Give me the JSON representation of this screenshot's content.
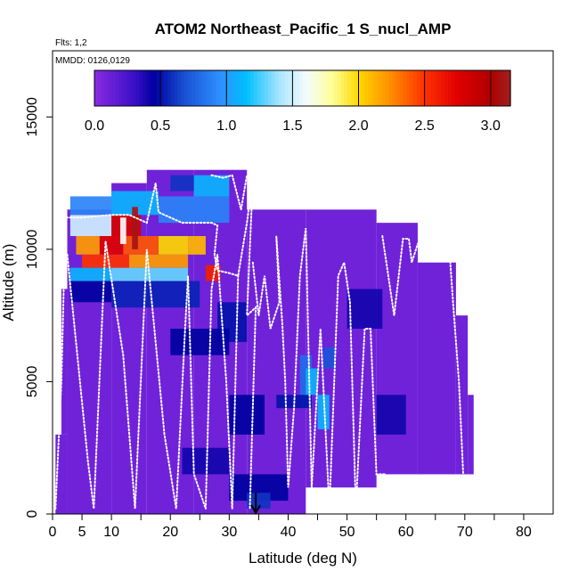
{
  "chart_data": {
    "type": "heatmap",
    "title": "ATOM2 Northeast_Pacific_1 S_nucl_AMP",
    "flights_note": "Flts: 1,2",
    "dates_note": "MMDD: 0126,0129",
    "xlabel": "Latitude (deg N)",
    "ylabel": "Altitude (m)",
    "xlim": [
      0,
      85
    ],
    "ylim": [
      0,
      17500
    ],
    "x_ticks": [
      0,
      5,
      10,
      20,
      30,
      40,
      50,
      60,
      70,
      80
    ],
    "x_minor_ticks": [
      15,
      25,
      35,
      45,
      55,
      65,
      75
    ],
    "y_ticks": [
      0,
      5000,
      10000,
      15000
    ],
    "colorbar": {
      "range": [
        0,
        3.15
      ],
      "ticks": [
        "0.0",
        "0.5",
        "1.0",
        "1.5",
        "2.0",
        "2.5",
        "3.0"
      ],
      "tick_values": [
        0,
        0.5,
        1.0,
        1.5,
        2.0,
        2.5,
        3.0
      ],
      "stops": [
        {
          "v": 0.0,
          "c": "#8a2be2"
        },
        {
          "v": 0.3,
          "c": "#3c10c8"
        },
        {
          "v": 0.45,
          "c": "#0000a0"
        },
        {
          "v": 0.7,
          "c": "#1a55d8"
        },
        {
          "v": 0.95,
          "c": "#2e8fff"
        },
        {
          "v": 1.15,
          "c": "#00bfff"
        },
        {
          "v": 1.4,
          "c": "#a8e4ff"
        },
        {
          "v": 1.6,
          "c": "#f4fbff"
        },
        {
          "v": 1.8,
          "c": "#ffff99"
        },
        {
          "v": 2.0,
          "c": "#ffd700"
        },
        {
          "v": 2.25,
          "c": "#ff8c00"
        },
        {
          "v": 2.5,
          "c": "#ff3000"
        },
        {
          "v": 2.75,
          "c": "#e00000"
        },
        {
          "v": 3.0,
          "c": "#b00000"
        },
        {
          "v": 3.15,
          "c": "#a02020"
        }
      ]
    },
    "footprint_segments": [
      {
        "lat": [
          0.5,
          2.5
        ],
        "alt": [
          0,
          3000
        ]
      },
      {
        "lat": [
          1.5,
          2.5
        ],
        "alt": [
          3000,
          8500
        ]
      },
      {
        "lat": [
          2.5,
          10
        ],
        "alt": [
          0,
          9000
        ]
      },
      {
        "lat": [
          2.5,
          10
        ],
        "alt": [
          9000,
          11500
        ]
      },
      {
        "lat": [
          10,
          16
        ],
        "alt": [
          0,
          12500
        ]
      },
      {
        "lat": [
          16,
          24
        ],
        "alt": [
          0,
          13000
        ]
      },
      {
        "lat": [
          24,
          33
        ],
        "alt": [
          0,
          13000
        ]
      },
      {
        "lat": [
          33,
          43
        ],
        "alt": [
          0,
          11500
        ]
      },
      {
        "lat": [
          43,
          55
        ],
        "alt": [
          1000,
          11500
        ]
      },
      {
        "lat": [
          55,
          62
        ],
        "alt": [
          1500,
          11000
        ]
      },
      {
        "lat": [
          62,
          68.5
        ],
        "alt": [
          1500,
          9500
        ]
      },
      {
        "lat": [
          68.5,
          70.5
        ],
        "alt": [
          1500,
          7500
        ]
      },
      {
        "lat": [
          70.5,
          71.5
        ],
        "alt": [
          1500,
          4500
        ]
      }
    ],
    "highlight_cells": [
      {
        "lat": [
          3,
          10
        ],
        "alt": [
          10500,
          11300
        ],
        "v": 1.5
      },
      {
        "lat": [
          10,
          15
        ],
        "alt": [
          10500,
          11300
        ],
        "v": 2.8
      },
      {
        "lat": [
          4,
          8
        ],
        "alt": [
          9800,
          10500
        ],
        "v": 2.2
      },
      {
        "lat": [
          8,
          12
        ],
        "alt": [
          9800,
          10500
        ],
        "v": 2.75
      },
      {
        "lat": [
          12,
          18
        ],
        "alt": [
          9800,
          10500
        ],
        "v": 2.4
      },
      {
        "lat": [
          18,
          23
        ],
        "alt": [
          9800,
          10500
        ],
        "v": 2.0
      },
      {
        "lat": [
          23,
          26
        ],
        "alt": [
          9800,
          10500
        ],
        "v": 2.1
      },
      {
        "lat": [
          5,
          13
        ],
        "alt": [
          9300,
          9800
        ],
        "v": 2.5
      },
      {
        "lat": [
          13,
          23
        ],
        "alt": [
          9300,
          9800
        ],
        "v": 2.2
      },
      {
        "lat": [
          3,
          10
        ],
        "alt": [
          8800,
          9300
        ],
        "v": 1.1
      },
      {
        "lat": [
          10,
          23
        ],
        "alt": [
          8800,
          9300
        ],
        "v": 1.3
      },
      {
        "lat": [
          26,
          28.5
        ],
        "alt": [
          8800,
          9400
        ],
        "v": 2.6
      },
      {
        "lat": [
          3,
          10
        ],
        "alt": [
          11300,
          12000
        ],
        "v": 0.9
      },
      {
        "lat": [
          10,
          18
        ],
        "alt": [
          11300,
          12200
        ],
        "v": 1.1
      },
      {
        "lat": [
          18,
          30
        ],
        "alt": [
          11000,
          12000
        ],
        "v": 0.9
      },
      {
        "lat": [
          24,
          30
        ],
        "alt": [
          12000,
          12800
        ],
        "v": 1.1
      },
      {
        "lat": [
          20,
          24
        ],
        "alt": [
          12200,
          12800
        ],
        "v": 0.6
      },
      {
        "lat": [
          13.5,
          14.5
        ],
        "alt": [
          10000,
          11600
        ],
        "v": 3.1
      },
      {
        "lat": [
          11.5,
          12.5
        ],
        "alt": [
          10200,
          11200
        ],
        "v": 1.6
      },
      {
        "lat": [
          3,
          10
        ],
        "alt": [
          8000,
          8800
        ],
        "v": 0.45
      },
      {
        "lat": [
          10,
          25
        ],
        "alt": [
          7800,
          8800
        ],
        "v": 0.55
      },
      {
        "lat": [
          28,
          33
        ],
        "alt": [
          6500,
          8000
        ],
        "v": 0.5
      },
      {
        "lat": [
          42,
          44
        ],
        "alt": [
          4000,
          6000
        ],
        "v": 0.8
      },
      {
        "lat": [
          43,
          45
        ],
        "alt": [
          4500,
          5500
        ],
        "v": 1.1
      },
      {
        "lat": [
          45,
          47
        ],
        "alt": [
          3200,
          4500
        ],
        "v": 1.1
      },
      {
        "lat": [
          38,
          44
        ],
        "alt": [
          4000,
          4500
        ],
        "v": 0.5
      },
      {
        "lat": [
          46,
          48
        ],
        "alt": [
          5500,
          6300
        ],
        "v": 0.7
      },
      {
        "lat": [
          20,
          30
        ],
        "alt": [
          6000,
          7000
        ],
        "v": 0.45
      },
      {
        "lat": [
          30,
          36
        ],
        "alt": [
          3000,
          4500
        ],
        "v": 0.45
      },
      {
        "lat": [
          22,
          30
        ],
        "alt": [
          1500,
          2500
        ],
        "v": 0.4
      },
      {
        "lat": [
          30,
          40
        ],
        "alt": [
          500,
          1500
        ],
        "v": 0.45
      },
      {
        "lat": [
          33,
          37
        ],
        "alt": [
          200,
          800
        ],
        "v": 0.6
      },
      {
        "lat": [
          55,
          60
        ],
        "alt": [
          3000,
          4500
        ],
        "v": 0.4
      },
      {
        "lat": [
          50,
          56
        ],
        "alt": [
          7000,
          8500
        ],
        "v": 0.4
      }
    ],
    "flight_track": [
      [
        0.5,
        200
      ],
      [
        1.5,
        5000
      ],
      [
        2.2,
        11200
      ],
      [
        5,
        11200
      ],
      [
        10,
        11300
      ],
      [
        13,
        11300
      ],
      [
        16,
        11000
      ],
      [
        17.5,
        12500
      ],
      [
        18,
        11400
      ],
      [
        22,
        11000
      ],
      [
        27,
        11000
      ],
      [
        28,
        10900
      ],
      [
        27.5,
        9800
      ],
      [
        28,
        9200
      ],
      [
        30,
        9100
      ],
      [
        31.5,
        9000
      ],
      [
        33,
        11000
      ],
      [
        34,
        12600
      ],
      [
        33,
        7500
      ],
      [
        34.5,
        7800
      ],
      [
        33.5,
        200
      ],
      null,
      [
        2.5,
        9800
      ],
      [
        6,
        2000
      ],
      [
        7,
        200
      ],
      [
        9,
        10300
      ],
      [
        12,
        6000
      ],
      [
        14,
        200
      ],
      [
        16,
        10000
      ],
      [
        19,
        3000
      ],
      [
        21,
        200
      ],
      [
        22.5,
        7000
      ],
      [
        23,
        9000
      ],
      [
        24,
        1500
      ],
      [
        26,
        200
      ],
      [
        27,
        8500
      ],
      [
        28,
        9800
      ],
      [
        29.5,
        5000
      ],
      [
        30.5,
        200
      ],
      [
        31.5,
        9000
      ],
      null,
      [
        27,
        12800
      ],
      [
        29,
        12700
      ],
      [
        30.5,
        12800
      ],
      [
        32,
        11500
      ],
      [
        33,
        12800
      ],
      null,
      [
        34,
        9500
      ],
      [
        35,
        7500
      ],
      [
        36,
        9000
      ],
      [
        37,
        7000
      ],
      [
        38.5,
        8000
      ],
      [
        38,
        10500
      ],
      [
        39,
        7200
      ],
      [
        39.5,
        5000
      ],
      [
        40,
        1000
      ],
      [
        41,
        4000
      ],
      [
        42,
        9000
      ],
      [
        43,
        10800
      ],
      [
        44,
        1000
      ],
      [
        45.5,
        7000
      ],
      [
        47,
        200
      ],
      [
        48.5,
        9000
      ],
      [
        49.5,
        9500
      ],
      [
        50.5,
        8000
      ],
      [
        51.5,
        200
      ],
      [
        53,
        7000
      ],
      [
        54,
        7000
      ],
      [
        55,
        1500
      ],
      [
        56.5,
        1500
      ],
      null,
      [
        56,
        10500
      ],
      [
        58,
        7500
      ],
      [
        59.5,
        10400
      ],
      [
        60.5,
        10400
      ],
      [
        61,
        9500
      ],
      [
        62,
        10200
      ],
      [
        63,
        10500
      ],
      [
        64.5,
        10600
      ],
      [
        65,
        11100
      ],
      [
        67,
        11200
      ],
      [
        68,
        8000
      ],
      [
        69,
        5000
      ],
      [
        70,
        200
      ]
    ],
    "marker_lat": 34.5
  }
}
